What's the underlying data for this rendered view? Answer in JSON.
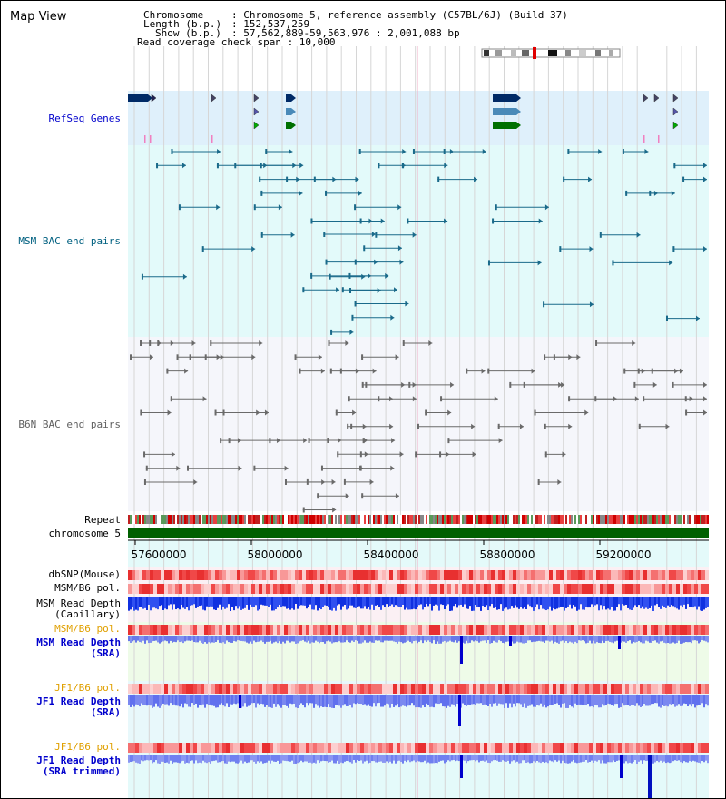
{
  "map_title": "Map View",
  "info": {
    "chromosome_key": "Chromosome",
    "chromosome_val": ": Chromosome 5, reference assembly (C57BL/6J) (Build 37)",
    "length_key": "Length (b.p.)",
    "length_val": ": 152,537,259",
    "show_key": "Show (b.p.)",
    "show_val": ": 57,562,889-59,563,976 : 2,001,088 bp",
    "coverage": "Read coverage check span : 10,000"
  },
  "tracks": {
    "refseq": "RefSeq Genes",
    "msm_bac": "MSM BAC end pairs",
    "b6n_bac": "B6N BAC end pairs",
    "repeat": "Repeat",
    "chromosome": "chromosome 5",
    "dbsnp": "dbSNP(Mouse)",
    "msm_b6_pol_1": "MSM/B6 pol.",
    "msm_rd_cap_1": "MSM Read Depth",
    "msm_rd_cap_2": "(Capillary)",
    "msm_b6_pol_2": "MSM/B6 pol.",
    "msm_rd_sra_1": "MSM Read Depth",
    "msm_rd_sra_2": "(SRA)",
    "jf1_b6_pol_1": "JF1/B6 pol.",
    "jf1_rd_sra_1": "JF1 Read Depth",
    "jf1_rd_sra_2": "(SRA)",
    "jf1_b6_pol_2": "JF1/B6 pol.",
    "jf1_rd_trim_1": "JF1 Read Depth",
    "jf1_rd_trim_2": "(SRA trimmed)"
  },
  "axis_ticks": [
    "57600000",
    "58000000",
    "58400000",
    "58800000",
    "59200000"
  ],
  "colors": {
    "refseq_bg": "#dff0fb",
    "msm_bg": "#e3fafa",
    "b6n_bg": "#f5f6fb",
    "refseq_label": "#0000cc",
    "msm_label": "#006080",
    "b6n_label": "#606060",
    "pol_orange": "#e0a000",
    "depth_blue": "#0000cc",
    "chromosome_green": "#006000"
  }
}
